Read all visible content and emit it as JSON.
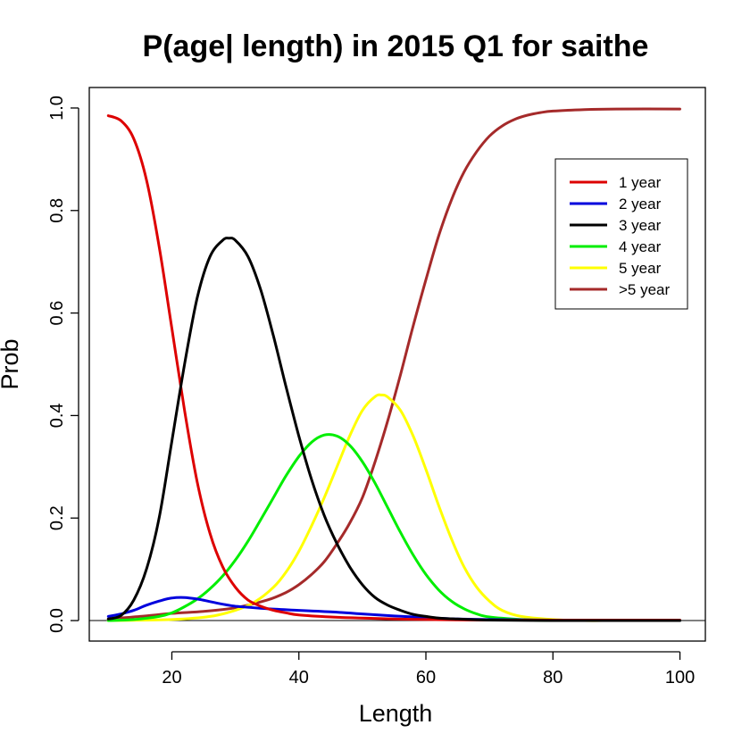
{
  "chart_data": {
    "type": "line",
    "title": "P(age| length) in 2015 Q1 for saithe",
    "xlabel": "Length",
    "ylabel": "Prob",
    "xlim": [
      7,
      104
    ],
    "ylim": [
      -0.04,
      1.04
    ],
    "xticks": [
      20,
      40,
      60,
      80,
      100
    ],
    "yticks": [
      0.0,
      0.2,
      0.4,
      0.6,
      0.8,
      1.0
    ],
    "xtick_labels": [
      "20",
      "40",
      "60",
      "80",
      "100"
    ],
    "ytick_labels": [
      "0.0",
      "0.2",
      "0.4",
      "0.6",
      "0.8",
      "1.0"
    ],
    "hline": 0,
    "grid": false,
    "legend": {
      "position": "top-right"
    },
    "series": [
      {
        "name": "1 year",
        "color": "#dd0000",
        "x": [
          10,
          12,
          14,
          16,
          18,
          20,
          22,
          24,
          26,
          28,
          30,
          32,
          34,
          36,
          38,
          40,
          45,
          50,
          55,
          60,
          70,
          80,
          90,
          100
        ],
        "y": [
          0.985,
          0.975,
          0.94,
          0.86,
          0.73,
          0.57,
          0.41,
          0.27,
          0.17,
          0.105,
          0.065,
          0.04,
          0.028,
          0.02,
          0.015,
          0.011,
          0.007,
          0.005,
          0.003,
          0.002,
          0.001,
          0.001,
          0.001,
          0.001
        ]
      },
      {
        "name": "2 year",
        "color": "#0000dd",
        "x": [
          10,
          12,
          14,
          16,
          18,
          20,
          22,
          24,
          26,
          28,
          30,
          32,
          35,
          40,
          45,
          50,
          55,
          60,
          65,
          70,
          80,
          90,
          100
        ],
        "y": [
          0.008,
          0.013,
          0.02,
          0.03,
          0.038,
          0.044,
          0.045,
          0.042,
          0.037,
          0.032,
          0.028,
          0.026,
          0.023,
          0.02,
          0.017,
          0.013,
          0.009,
          0.006,
          0.003,
          0.002,
          0.001,
          0.0,
          0.0
        ]
      },
      {
        "name": "3 year",
        "color": "#000000",
        "x": [
          10,
          12,
          14,
          16,
          18,
          20,
          22,
          24,
          26,
          28,
          29,
          30,
          32,
          34,
          36,
          38,
          40,
          42,
          44,
          46,
          48,
          50,
          52,
          54,
          56,
          58,
          60,
          62,
          65,
          70,
          80,
          90,
          100
        ],
        "y": [
          0.003,
          0.01,
          0.04,
          0.1,
          0.2,
          0.35,
          0.5,
          0.63,
          0.71,
          0.742,
          0.746,
          0.742,
          0.71,
          0.645,
          0.555,
          0.455,
          0.36,
          0.275,
          0.205,
          0.15,
          0.105,
          0.07,
          0.045,
          0.03,
          0.02,
          0.012,
          0.008,
          0.005,
          0.003,
          0.001,
          0.0,
          0.0,
          0.0
        ]
      },
      {
        "name": "4 year",
        "color": "#00ee00",
        "x": [
          10,
          14,
          18,
          20,
          22,
          24,
          26,
          28,
          30,
          32,
          34,
          36,
          38,
          40,
          42,
          44,
          46,
          48,
          50,
          52,
          54,
          56,
          58,
          60,
          62,
          64,
          66,
          68,
          70,
          75,
          80,
          90,
          100
        ],
        "y": [
          0.0,
          0.002,
          0.008,
          0.015,
          0.027,
          0.042,
          0.062,
          0.087,
          0.118,
          0.155,
          0.197,
          0.24,
          0.283,
          0.32,
          0.348,
          0.362,
          0.36,
          0.342,
          0.31,
          0.268,
          0.22,
          0.172,
          0.128,
          0.09,
          0.06,
          0.038,
          0.023,
          0.013,
          0.007,
          0.002,
          0.0,
          0.0,
          0.0
        ]
      },
      {
        "name": "5 year",
        "color": "#ffff00",
        "x": [
          10,
          20,
          26,
          30,
          33,
          36,
          38,
          40,
          42,
          44,
          46,
          48,
          50,
          52,
          53,
          54,
          56,
          58,
          60,
          62,
          64,
          66,
          68,
          70,
          72,
          75,
          80,
          85,
          90,
          100
        ],
        "y": [
          0.0,
          0.002,
          0.008,
          0.02,
          0.036,
          0.065,
          0.095,
          0.135,
          0.185,
          0.24,
          0.3,
          0.36,
          0.41,
          0.437,
          0.44,
          0.436,
          0.41,
          0.36,
          0.295,
          0.225,
          0.16,
          0.105,
          0.065,
          0.038,
          0.02,
          0.008,
          0.002,
          0.0,
          0.0,
          0.0
        ]
      },
      {
        "name": ">5 year",
        "color": "#a52a2a",
        "x": [
          10,
          15,
          20,
          25,
          30,
          35,
          38,
          40,
          42,
          44,
          46,
          48,
          50,
          52,
          54,
          56,
          58,
          60,
          62,
          64,
          66,
          68,
          70,
          72,
          74,
          76,
          78,
          80,
          85,
          90,
          100
        ],
        "y": [
          0.003,
          0.008,
          0.014,
          0.018,
          0.025,
          0.04,
          0.055,
          0.07,
          0.09,
          0.115,
          0.15,
          0.19,
          0.24,
          0.31,
          0.39,
          0.48,
          0.575,
          0.665,
          0.75,
          0.82,
          0.875,
          0.915,
          0.945,
          0.965,
          0.978,
          0.986,
          0.991,
          0.994,
          0.997,
          0.998,
          0.998
        ]
      }
    ]
  }
}
